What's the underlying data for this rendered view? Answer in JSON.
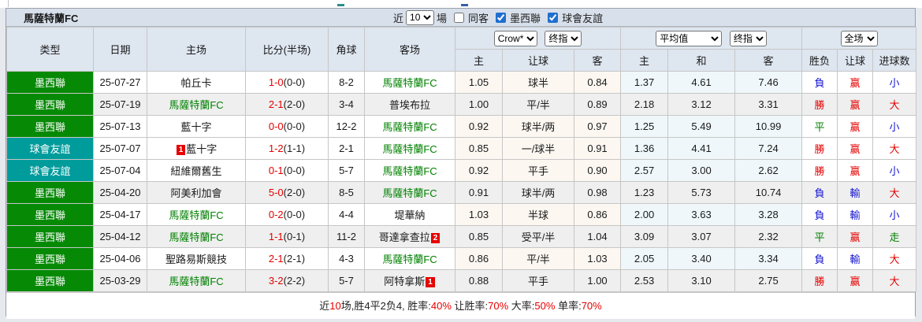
{
  "title": "馬薩特蘭FC",
  "filter": {
    "near_label": "近",
    "matches_value": "10",
    "games_label": "場",
    "checkboxes": [
      {
        "label": "同客",
        "checked": false
      },
      {
        "label": "墨西聯",
        "checked": true
      },
      {
        "label": "球會友誼",
        "checked": true
      }
    ]
  },
  "selects": {
    "odds_source": "Crow*",
    "final_index_left": "终指",
    "average": "平均值",
    "final_index_right": "终指",
    "full_match": "全场"
  },
  "headers": {
    "type": "类型",
    "date": "日期",
    "home": "主场",
    "score": "比分(半场)",
    "corner": "角球",
    "away": "客场",
    "odds_home": "主",
    "odds_handicap": "让球",
    "odds_away": "客",
    "avg_home": "主",
    "avg_draw": "和",
    "avg_away": "客",
    "result_wdl": "胜负",
    "result_handicap": "让球",
    "result_goals": "进球数"
  },
  "colors": {
    "league_mexico": "#068A06",
    "league_friendly": "#009C9C",
    "focus_team_green": "#008000",
    "win_red": "#E60000",
    "lose_blue": "#1414D2",
    "draw_green": "#008000",
    "header_bg": "#DEE6F0",
    "titlebar_bg": "#D8E0EB",
    "shade_row_bg": "#EFEFEF",
    "crow_col_bg": "#FCF7F1",
    "avg_col_bg": "#EFF7FA"
  },
  "rows": [
    {
      "league": "墨西聯",
      "league_type": "mex",
      "date": "25-07-27",
      "home": {
        "name": "帕丘卡",
        "green": false,
        "badge": null,
        "badge_pos": null
      },
      "score": {
        "ft": "1-0",
        "ht": "(0-0)"
      },
      "corner": "8-2",
      "away": {
        "name": "馬薩特蘭FC",
        "green": true,
        "badge": null,
        "badge_pos": null
      },
      "crow": [
        "1.05",
        "球半",
        "0.84"
      ],
      "avg": [
        "1.37",
        "4.61",
        "7.46"
      ],
      "results": [
        {
          "text": "負",
          "color": "blue"
        },
        {
          "text": "赢",
          "color": "red"
        },
        {
          "text": "小",
          "color": "blue"
        }
      ],
      "shaded": false
    },
    {
      "league": "墨西聯",
      "league_type": "mex",
      "date": "25-07-19",
      "home": {
        "name": "馬薩特蘭FC",
        "green": true,
        "badge": null,
        "badge_pos": null
      },
      "score": {
        "ft": "2-1",
        "ht": "(2-0)"
      },
      "corner": "3-4",
      "away": {
        "name": "普埃布拉",
        "green": false,
        "badge": null,
        "badge_pos": null
      },
      "crow": [
        "1.00",
        "平/半",
        "0.89"
      ],
      "avg": [
        "2.18",
        "3.12",
        "3.31"
      ],
      "results": [
        {
          "text": "勝",
          "color": "red"
        },
        {
          "text": "赢",
          "color": "red"
        },
        {
          "text": "大",
          "color": "red"
        }
      ],
      "shaded": true
    },
    {
      "league": "墨西聯",
      "league_type": "mex",
      "date": "25-07-13",
      "home": {
        "name": "藍十字",
        "green": false,
        "badge": null,
        "badge_pos": null
      },
      "score": {
        "ft": "0-0",
        "ht": "(0-0)"
      },
      "corner": "12-2",
      "away": {
        "name": "馬薩特蘭FC",
        "green": true,
        "badge": null,
        "badge_pos": null
      },
      "crow": [
        "0.92",
        "球半/两",
        "0.97"
      ],
      "avg": [
        "1.25",
        "5.49",
        "10.99"
      ],
      "results": [
        {
          "text": "平",
          "color": "green"
        },
        {
          "text": "赢",
          "color": "red"
        },
        {
          "text": "小",
          "color": "blue"
        }
      ],
      "shaded": false
    },
    {
      "league": "球會友誼",
      "league_type": "frd",
      "date": "25-07-07",
      "home": {
        "name": "藍十字",
        "green": false,
        "badge": "1",
        "badge_pos": "before"
      },
      "score": {
        "ft": "1-2",
        "ht": "(1-1)"
      },
      "corner": "2-1",
      "away": {
        "name": "馬薩特蘭FC",
        "green": true,
        "badge": null,
        "badge_pos": null
      },
      "crow": [
        "0.85",
        "一/球半",
        "0.91"
      ],
      "avg": [
        "1.36",
        "4.41",
        "7.24"
      ],
      "results": [
        {
          "text": "勝",
          "color": "red"
        },
        {
          "text": "赢",
          "color": "red"
        },
        {
          "text": "大",
          "color": "red"
        }
      ],
      "shaded": false
    },
    {
      "league": "球會友誼",
      "league_type": "frd",
      "date": "25-07-04",
      "home": {
        "name": "紐維爾舊生",
        "green": false,
        "badge": null,
        "badge_pos": null
      },
      "score": {
        "ft": "0-1",
        "ht": "(0-0)"
      },
      "corner": "5-7",
      "away": {
        "name": "馬薩特蘭FC",
        "green": true,
        "badge": null,
        "badge_pos": null
      },
      "crow": [
        "0.92",
        "平手",
        "0.90"
      ],
      "avg": [
        "2.57",
        "3.00",
        "2.62"
      ],
      "results": [
        {
          "text": "勝",
          "color": "red"
        },
        {
          "text": "赢",
          "color": "red"
        },
        {
          "text": "小",
          "color": "blue"
        }
      ],
      "shaded": false
    },
    {
      "league": "墨西聯",
      "league_type": "mex",
      "date": "25-04-20",
      "home": {
        "name": "阿美利加會",
        "green": false,
        "badge": null,
        "badge_pos": null
      },
      "score": {
        "ft": "5-0",
        "ht": "(2-0)"
      },
      "corner": "8-5",
      "away": {
        "name": "馬薩特蘭FC",
        "green": true,
        "badge": null,
        "badge_pos": null
      },
      "crow": [
        "0.91",
        "球半/两",
        "0.98"
      ],
      "avg": [
        "1.23",
        "5.73",
        "10.74"
      ],
      "results": [
        {
          "text": "負",
          "color": "blue"
        },
        {
          "text": "輸",
          "color": "blue"
        },
        {
          "text": "大",
          "color": "red"
        }
      ],
      "shaded": true
    },
    {
      "league": "墨西聯",
      "league_type": "mex",
      "date": "25-04-17",
      "home": {
        "name": "馬薩特蘭FC",
        "green": true,
        "badge": null,
        "badge_pos": null
      },
      "score": {
        "ft": "0-2",
        "ht": "(0-0)"
      },
      "corner": "4-4",
      "away": {
        "name": "堤華納",
        "green": false,
        "badge": null,
        "badge_pos": null
      },
      "crow": [
        "1.03",
        "半球",
        "0.86"
      ],
      "avg": [
        "2.00",
        "3.63",
        "3.28"
      ],
      "results": [
        {
          "text": "負",
          "color": "blue"
        },
        {
          "text": "輸",
          "color": "blue"
        },
        {
          "text": "小",
          "color": "blue"
        }
      ],
      "shaded": false
    },
    {
      "league": "墨西聯",
      "league_type": "mex",
      "date": "25-04-12",
      "home": {
        "name": "馬薩特蘭FC",
        "green": true,
        "badge": null,
        "badge_pos": null
      },
      "score": {
        "ft": "1-1",
        "ht": "(0-1)"
      },
      "corner": "11-2",
      "away": {
        "name": "哥達拿查拉",
        "green": false,
        "badge": "2",
        "badge_pos": "after"
      },
      "crow": [
        "0.85",
        "受平/半",
        "1.04"
      ],
      "avg": [
        "3.09",
        "3.07",
        "2.32"
      ],
      "results": [
        {
          "text": "平",
          "color": "green"
        },
        {
          "text": "赢",
          "color": "red"
        },
        {
          "text": "走",
          "color": "green"
        }
      ],
      "shaded": true
    },
    {
      "league": "墨西聯",
      "league_type": "mex",
      "date": "25-04-06",
      "home": {
        "name": "聖路易斯競技",
        "green": false,
        "badge": null,
        "badge_pos": null
      },
      "score": {
        "ft": "2-1",
        "ht": "(2-1)"
      },
      "corner": "4-3",
      "away": {
        "name": "馬薩特蘭FC",
        "green": true,
        "badge": null,
        "badge_pos": null
      },
      "crow": [
        "0.86",
        "平/半",
        "1.03"
      ],
      "avg": [
        "2.05",
        "3.40",
        "3.34"
      ],
      "results": [
        {
          "text": "負",
          "color": "blue"
        },
        {
          "text": "輸",
          "color": "blue"
        },
        {
          "text": "大",
          "color": "red"
        }
      ],
      "shaded": false
    },
    {
      "league": "墨西聯",
      "league_type": "mex",
      "date": "25-03-29",
      "home": {
        "name": "馬薩特蘭FC",
        "green": true,
        "badge": null,
        "badge_pos": null
      },
      "score": {
        "ft": "3-2",
        "ht": "(2-2)"
      },
      "corner": "5-7",
      "away": {
        "name": "阿特拿斯",
        "green": false,
        "badge": "1",
        "badge_pos": "after"
      },
      "crow": [
        "0.88",
        "平手",
        "1.00"
      ],
      "avg": [
        "2.53",
        "3.10",
        "2.75"
      ],
      "results": [
        {
          "text": "勝",
          "color": "red"
        },
        {
          "text": "赢",
          "color": "red"
        },
        {
          "text": "大",
          "color": "red"
        }
      ],
      "shaded": true
    }
  ],
  "footer_segments": [
    {
      "text": "近",
      "red": false
    },
    {
      "text": "10",
      "red": true
    },
    {
      "text": "场,胜4平2负4, 胜率:",
      "red": false
    },
    {
      "text": "40%",
      "red": true
    },
    {
      "text": " 让胜率:",
      "red": false
    },
    {
      "text": "70%",
      "red": true
    },
    {
      "text": " 大率:",
      "red": false
    },
    {
      "text": "50%",
      "red": true
    },
    {
      "text": " 单率:",
      "red": false
    },
    {
      "text": "70%",
      "red": true
    }
  ]
}
